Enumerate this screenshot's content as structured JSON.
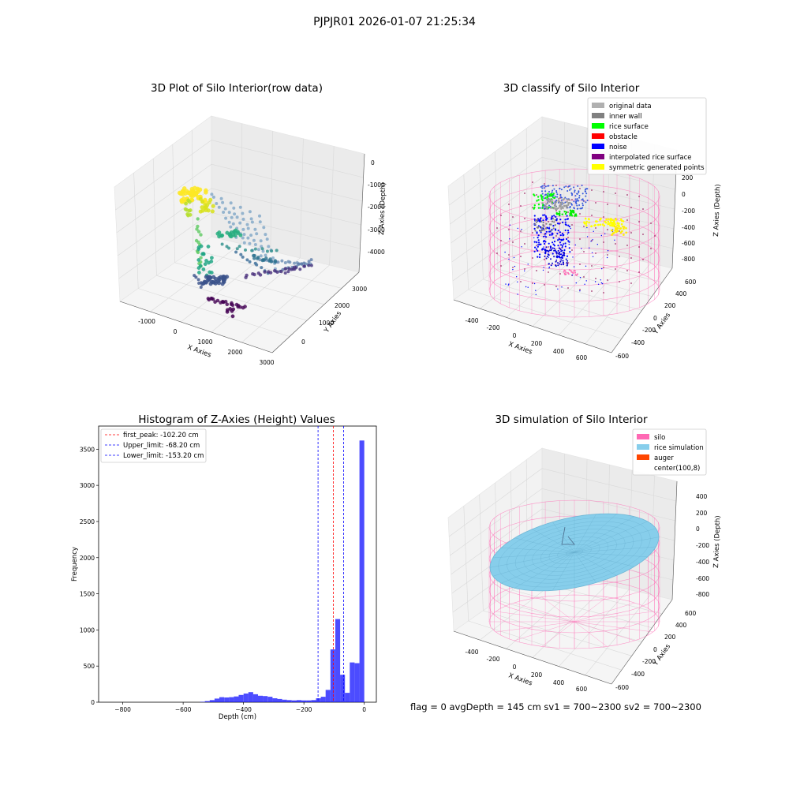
{
  "figure": {
    "suptitle": "PJPJR01 2026-01-07 21:25:34",
    "footer": "flag = 0     avgDepth = 145 cm  sv1 = 700~2300  sv2 = 700~2300"
  },
  "chart_data": [
    {
      "type": "scatter",
      "title": "3D Plot of Silo Interior(row data)",
      "xlabel": "X Axies",
      "ylabel": "Y Axies",
      "zlabel": "Z Axies (Depth)",
      "x_ticks": [
        "-1000",
        "0",
        "1000",
        "2000",
        "3000"
      ],
      "y_ticks": [
        "0",
        "1000",
        "2000",
        "3000"
      ],
      "z_ticks": [
        "0",
        "-1000",
        "-2000",
        "-3000",
        "-4000"
      ],
      "colormap": "viridis (by depth)",
      "series": []
    },
    {
      "type": "scatter",
      "title": "3D classify of Silo Interior",
      "xlabel": "X Axies",
      "ylabel": "Y Axies",
      "zlabel": "Z Axies (Depth)",
      "x_ticks": [
        "-400",
        "-200",
        "0",
        "200",
        "400",
        "600"
      ],
      "y_ticks": [
        "-600",
        "-400",
        "-200",
        "0",
        "200",
        "400",
        "600"
      ],
      "z_ticks": [
        "200",
        "0",
        "-200",
        "-400",
        "-600",
        "-800"
      ],
      "legend_position": "top-right",
      "legend": [
        {
          "label": "original data",
          "color": "#b0b0b0"
        },
        {
          "label": "inner wall",
          "color": "#808080"
        },
        {
          "label": "rice surface",
          "color": "#00ff00"
        },
        {
          "label": "obstacle",
          "color": "#ff0000"
        },
        {
          "label": "noise",
          "color": "#0000ff"
        },
        {
          "label": "interpolated rice surface",
          "color": "#800080"
        },
        {
          "label": "symmetric generated points",
          "color": "#ffff00"
        }
      ],
      "series": []
    },
    {
      "type": "bar",
      "title": "Histogram of Z-Axies (Height) Values",
      "xlabel": "Depth (cm)",
      "ylabel": "Frequency",
      "xlim": [
        -880,
        40
      ],
      "ylim": [
        0,
        3820
      ],
      "x_ticks": [
        -800,
        -600,
        -400,
        -200,
        0
      ],
      "y_ticks": [
        0,
        500,
        1000,
        1500,
        2000,
        2500,
        3000,
        3500
      ],
      "bar_color": "#0000ff",
      "bin_width": 16,
      "bins": [
        [
          -544,
          5
        ],
        [
          -528,
          15
        ],
        [
          -512,
          30
        ],
        [
          -496,
          50
        ],
        [
          -480,
          70
        ],
        [
          -464,
          65
        ],
        [
          -448,
          70
        ],
        [
          -432,
          80
        ],
        [
          -416,
          100
        ],
        [
          -400,
          120
        ],
        [
          -384,
          140
        ],
        [
          -368,
          110
        ],
        [
          -352,
          90
        ],
        [
          -336,
          85
        ],
        [
          -320,
          75
        ],
        [
          -304,
          55
        ],
        [
          -288,
          45
        ],
        [
          -272,
          35
        ],
        [
          -256,
          30
        ],
        [
          -240,
          25
        ],
        [
          -224,
          30
        ],
        [
          -208,
          25
        ],
        [
          -192,
          25
        ],
        [
          -176,
          30
        ],
        [
          -160,
          55
        ],
        [
          -144,
          75
        ],
        [
          -128,
          170
        ],
        [
          -112,
          730
        ],
        [
          -96,
          1150
        ],
        [
          -80,
          380
        ],
        [
          -64,
          130
        ],
        [
          -48,
          550
        ],
        [
          -32,
          540
        ],
        [
          -16,
          3620
        ]
      ],
      "lines": [
        {
          "label": "first_peak: -102.20 cm",
          "x": -102.2,
          "color": "#ff0000"
        },
        {
          "label": "Upper_limit: -68.20 cm",
          "x": -68.2,
          "color": "#0000ff"
        },
        {
          "label": "Lower_limit: -153.20 cm",
          "x": -153.2,
          "color": "#0000ff"
        }
      ],
      "legend_position": "top-left"
    },
    {
      "type": "area",
      "title": "3D simulation of Silo Interior",
      "xlabel": "X Axies",
      "ylabel": "Y Axies",
      "zlabel": "Z Axies (Depth)",
      "x_ticks": [
        "-400",
        "-200",
        "0",
        "200",
        "400",
        "600"
      ],
      "y_ticks": [
        "-600",
        "-400",
        "-200",
        "0",
        "200",
        "400",
        "600"
      ],
      "z_ticks": [
        "400",
        "200",
        "0",
        "-200",
        "-400",
        "-600",
        "-800"
      ],
      "legend_position": "top-right",
      "legend": [
        {
          "label": "silo",
          "color": "#ff69b4"
        },
        {
          "label": "rice simulation",
          "color": "#87ceeb"
        },
        {
          "label": "auger",
          "color": "#ff4500"
        },
        {
          "label": "center(100,8)",
          "color": ""
        }
      ]
    }
  ]
}
